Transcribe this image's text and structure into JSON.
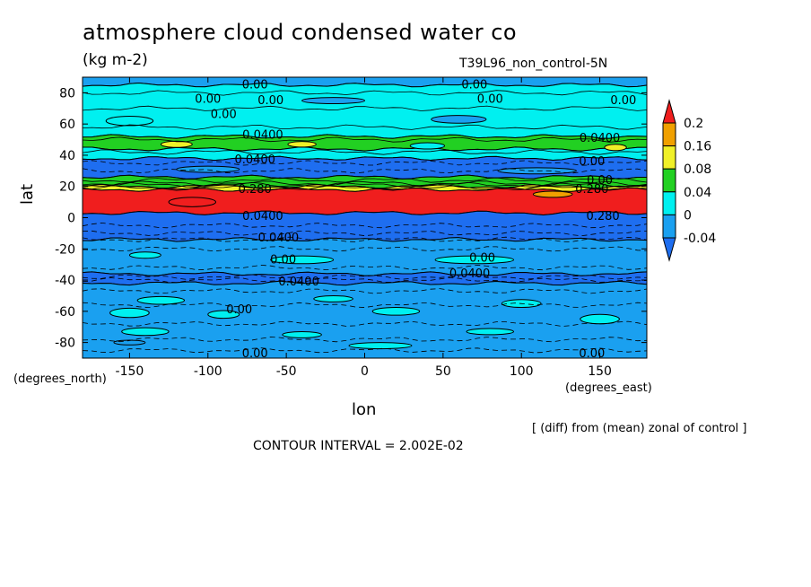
{
  "title": "atmosphere cloud condensed water co",
  "units": "(kg m-2)",
  "run_label": "T39L96_non_control-5N",
  "note": "[ (diff) from (mean) zonal of control ]",
  "contour_interval": "CONTOUR INTERVAL = 2.002E-02",
  "x_axis_label": "lon",
  "y_axis_label": "lat",
  "x_units": "(degrees_east)",
  "y_units": "(degrees_north)",
  "colors": {
    "below_-0.04": "#1e6ef0",
    "-0.04_0": "#1aa0f0",
    "0_0.04": "#00f0f0",
    "0.04_0.08": "#22d022",
    "0.08_0.16": "#f0f028",
    "0.16_0.2": "#f0a000",
    "above_0.2": "#f01e1e"
  },
  "chart_data": {
    "type": "heatmap",
    "title": "atmosphere cloud condensed water co",
    "xlabel": "lon",
    "ylabel": "lat",
    "xlim": [
      -180,
      180
    ],
    "ylim": [
      -90,
      90
    ],
    "x_ticks": [
      "-150",
      "-100",
      "-50",
      "0",
      "50",
      "100",
      "150"
    ],
    "y_ticks": [
      "80",
      "60",
      "40",
      "20",
      "0",
      "-20",
      "-40",
      "-60",
      "-80"
    ],
    "colorbar": {
      "levels": [
        "0.2",
        "0.16",
        "0.08",
        "0.04",
        "0",
        "-0.04"
      ],
      "extend": "both"
    },
    "latitude_bands": [
      {
        "lat": [
          85,
          90
        ],
        "class": "-0.04_0"
      },
      {
        "lat": [
          52,
          85
        ],
        "class": "0_0.04"
      },
      {
        "lat": [
          44,
          52
        ],
        "class": "0.04_0.08"
      },
      {
        "lat": [
          38,
          44
        ],
        "class": "0_0.04"
      },
      {
        "lat": [
          26,
          38
        ],
        "class": "below_-0.04"
      },
      {
        "lat": [
          20,
          26
        ],
        "class": "0.04_0.08"
      },
      {
        "lat": [
          18,
          20
        ],
        "class": "0.08_0.16"
      },
      {
        "lat": [
          3,
          18
        ],
        "class": "above_0.2"
      },
      {
        "lat": [
          -14,
          3
        ],
        "class": "below_-0.04"
      },
      {
        "lat": [
          -36,
          -14
        ],
        "class": "-0.04_0"
      },
      {
        "lat": [
          -42,
          -36
        ],
        "class": "below_-0.04"
      },
      {
        "lat": [
          -90,
          -42
        ],
        "class": "-0.04_0"
      }
    ],
    "contour_labels": [
      {
        "text": "0.00",
        "lon": -70,
        "lat": 85
      },
      {
        "text": "0.00",
        "lon": -100,
        "lat": 76
      },
      {
        "text": "0.00",
        "lon": -60,
        "lat": 75
      },
      {
        "text": "0.00",
        "lon": 70,
        "lat": 85
      },
      {
        "text": "0.00",
        "lon": 80,
        "lat": 76
      },
      {
        "text": "0.00",
        "lon": 165,
        "lat": 75
      },
      {
        "text": "0.00",
        "lon": -90,
        "lat": 66
      },
      {
        "text": "0.0400",
        "lon": -65,
        "lat": 53
      },
      {
        "text": "0.0400",
        "lon": 150,
        "lat": 51
      },
      {
        "text": "0.0400",
        "lon": -70,
        "lat": 37
      },
      {
        "text": "0.00",
        "lon": 145,
        "lat": 36
      },
      {
        "text": "0.00",
        "lon": 150,
        "lat": 24
      },
      {
        "text": "0.280",
        "lon": -70,
        "lat": 18
      },
      {
        "text": "0.280",
        "lon": 145,
        "lat": 18
      },
      {
        "text": "0.0400",
        "lon": -65,
        "lat": 1
      },
      {
        "text": "0.280",
        "lon": 152,
        "lat": 1
      },
      {
        "text": "0.0400",
        "lon": -55,
        "lat": -13
      },
      {
        "text": "0.00",
        "lon": -52,
        "lat": -27
      },
      {
        "text": "0.00",
        "lon": 75,
        "lat": -26
      },
      {
        "text": "0.0400",
        "lon": -42,
        "lat": -41
      },
      {
        "text": "0.0400",
        "lon": 67,
        "lat": -36
      },
      {
        "text": "0.00",
        "lon": -80,
        "lat": -59
      },
      {
        "text": "0.00",
        "lon": -70,
        "lat": -87
      },
      {
        "text": "0.00",
        "lon": 145,
        "lat": -87
      }
    ]
  }
}
